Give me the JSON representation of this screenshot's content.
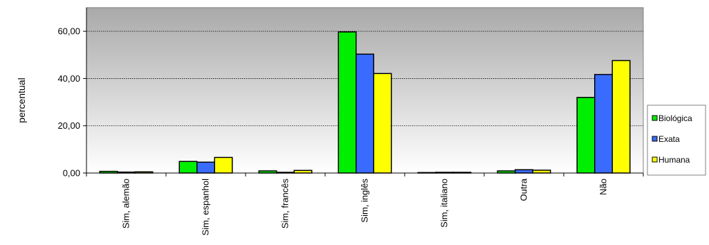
{
  "chart_data": {
    "type": "bar",
    "title": "",
    "xlabel": "",
    "ylabel": "percentual",
    "ylim": [
      0,
      70
    ],
    "yticks": [
      "0,00",
      "20,00",
      "40,00",
      "60,00"
    ],
    "ytick_values": [
      0,
      20,
      40,
      60
    ],
    "grid": true,
    "legend_position": "right",
    "categories": [
      "Sim, alemão",
      "Sim, espanhol",
      "Sim, francês",
      "Sim, inglês",
      "Sim, italiano",
      "Outra",
      "Não"
    ],
    "series": [
      {
        "name": "Biológica",
        "color": "#00ee00",
        "values": [
          0.7,
          4.9,
          0.9,
          59.7,
          0.2,
          0.9,
          32.0
        ]
      },
      {
        "name": "Exata",
        "color": "#3a6bff",
        "values": [
          0.4,
          4.6,
          0.3,
          50.3,
          0.3,
          1.4,
          41.7
        ]
      },
      {
        "name": "Humana",
        "color": "#ffff00",
        "values": [
          0.5,
          6.6,
          1.1,
          42.1,
          0.3,
          1.2,
          47.6
        ]
      }
    ]
  }
}
